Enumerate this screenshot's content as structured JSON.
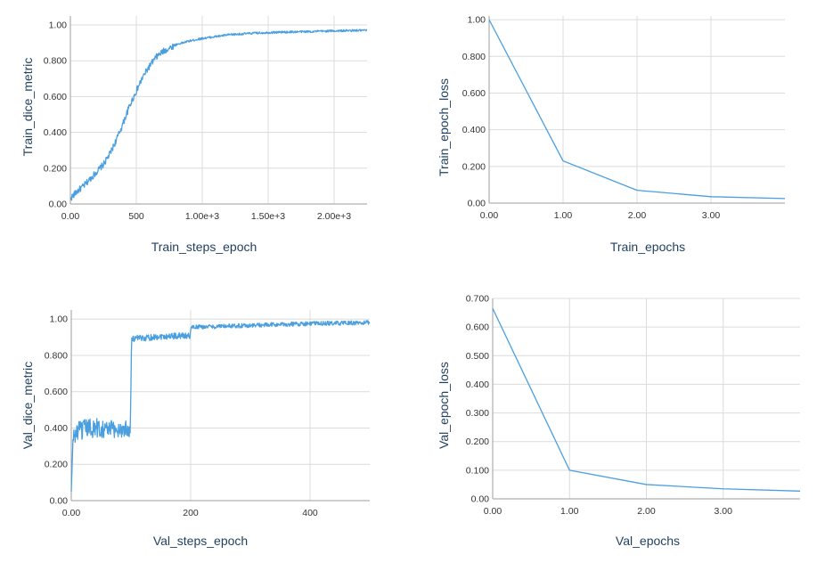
{
  "colors": {
    "series": "#4a9fe0",
    "grid": "#dcdcdc",
    "axis": "#9e9e9e",
    "label": "#1f3f5f"
  },
  "chart_data": [
    {
      "type": "line",
      "xlabel": "Train_steps_epoch",
      "ylabel": "Train_dice_metric",
      "xlim": [
        0,
        2250
      ],
      "ylim": [
        0,
        1.05
      ],
      "x_ticks": [
        0,
        500,
        1000,
        1500,
        2000
      ],
      "x_tick_labels": [
        "0.00",
        "500",
        "1.00e+3",
        "1.50e+3",
        "2.00e+3"
      ],
      "y_ticks": [
        0,
        0.2,
        0.4,
        0.6,
        0.8,
        1.0
      ],
      "y_tick_labels": [
        "0.00",
        "0.200",
        "0.400",
        "0.600",
        "0.800",
        "1.00"
      ],
      "grid": true,
      "noisy": true,
      "series": [
        {
          "x": [
            0,
            50,
            100,
            150,
            200,
            250,
            300,
            350,
            400,
            450,
            500,
            550,
            600,
            650,
            700,
            800,
            900,
            1000,
            1200,
            1400,
            1600,
            1800,
            2000,
            2250
          ],
          "values": [
            0.03,
            0.07,
            0.1,
            0.14,
            0.18,
            0.22,
            0.28,
            0.36,
            0.45,
            0.55,
            0.63,
            0.71,
            0.77,
            0.82,
            0.85,
            0.89,
            0.91,
            0.925,
            0.945,
            0.955,
            0.96,
            0.963,
            0.967,
            0.97
          ]
        }
      ]
    },
    {
      "type": "line",
      "xlabel": "Train_epochs",
      "ylabel": "Train_epoch_loss",
      "xlim": [
        0,
        4
      ],
      "ylim": [
        0,
        1.02
      ],
      "x_ticks": [
        0,
        1,
        2,
        3
      ],
      "x_tick_labels": [
        "0.00",
        "1.00",
        "2.00",
        "3.00"
      ],
      "y_ticks": [
        0,
        0.2,
        0.4,
        0.6,
        0.8,
        1.0
      ],
      "y_tick_labels": [
        "0.00",
        "0.200",
        "0.400",
        "0.600",
        "0.800",
        "1.00"
      ],
      "grid": true,
      "noisy": false,
      "series": [
        {
          "x": [
            0,
            1,
            2,
            3,
            4
          ],
          "values": [
            1.0,
            0.23,
            0.07,
            0.035,
            0.025
          ]
        }
      ]
    },
    {
      "type": "line",
      "xlabel": "Val_steps_epoch",
      "ylabel": "Val_dice_metric",
      "xlim": [
        0,
        500
      ],
      "ylim": [
        0,
        1.05
      ],
      "x_ticks": [
        0,
        200,
        400
      ],
      "x_tick_labels": [
        "0.00",
        "200",
        "400"
      ],
      "y_ticks": [
        0,
        0.2,
        0.4,
        0.6,
        0.8,
        1.0
      ],
      "y_tick_labels": [
        "0.00",
        "0.200",
        "0.400",
        "0.600",
        "0.800",
        "1.00"
      ],
      "grid": true,
      "noisy": true,
      "series": [
        {
          "x": [
            0,
            3,
            10,
            30,
            50,
            70,
            99,
            100,
            101,
            150,
            199,
            200,
            201,
            300,
            400,
            500
          ],
          "values": [
            0.05,
            0.35,
            0.38,
            0.4,
            0.4,
            0.39,
            0.4,
            0.65,
            0.89,
            0.905,
            0.91,
            0.93,
            0.955,
            0.965,
            0.975,
            0.98
          ]
        }
      ]
    },
    {
      "type": "line",
      "xlabel": "Val_epochs",
      "ylabel": "Val_epoch_loss",
      "xlim": [
        0,
        4
      ],
      "ylim": [
        0,
        0.7
      ],
      "x_ticks": [
        0,
        1,
        2,
        3
      ],
      "x_tick_labels": [
        "0.00",
        "1.00",
        "2.00",
        "3.00"
      ],
      "y_ticks": [
        0,
        0.1,
        0.2,
        0.3,
        0.4,
        0.5,
        0.6,
        0.7
      ],
      "y_tick_labels": [
        "0.00",
        "0.100",
        "0.200",
        "0.300",
        "0.400",
        "0.500",
        "0.600",
        "0.700"
      ],
      "grid": true,
      "noisy": false,
      "series": [
        {
          "x": [
            0,
            1,
            2,
            3,
            4
          ],
          "values": [
            0.665,
            0.1,
            0.05,
            0.035,
            0.027
          ]
        }
      ]
    }
  ]
}
